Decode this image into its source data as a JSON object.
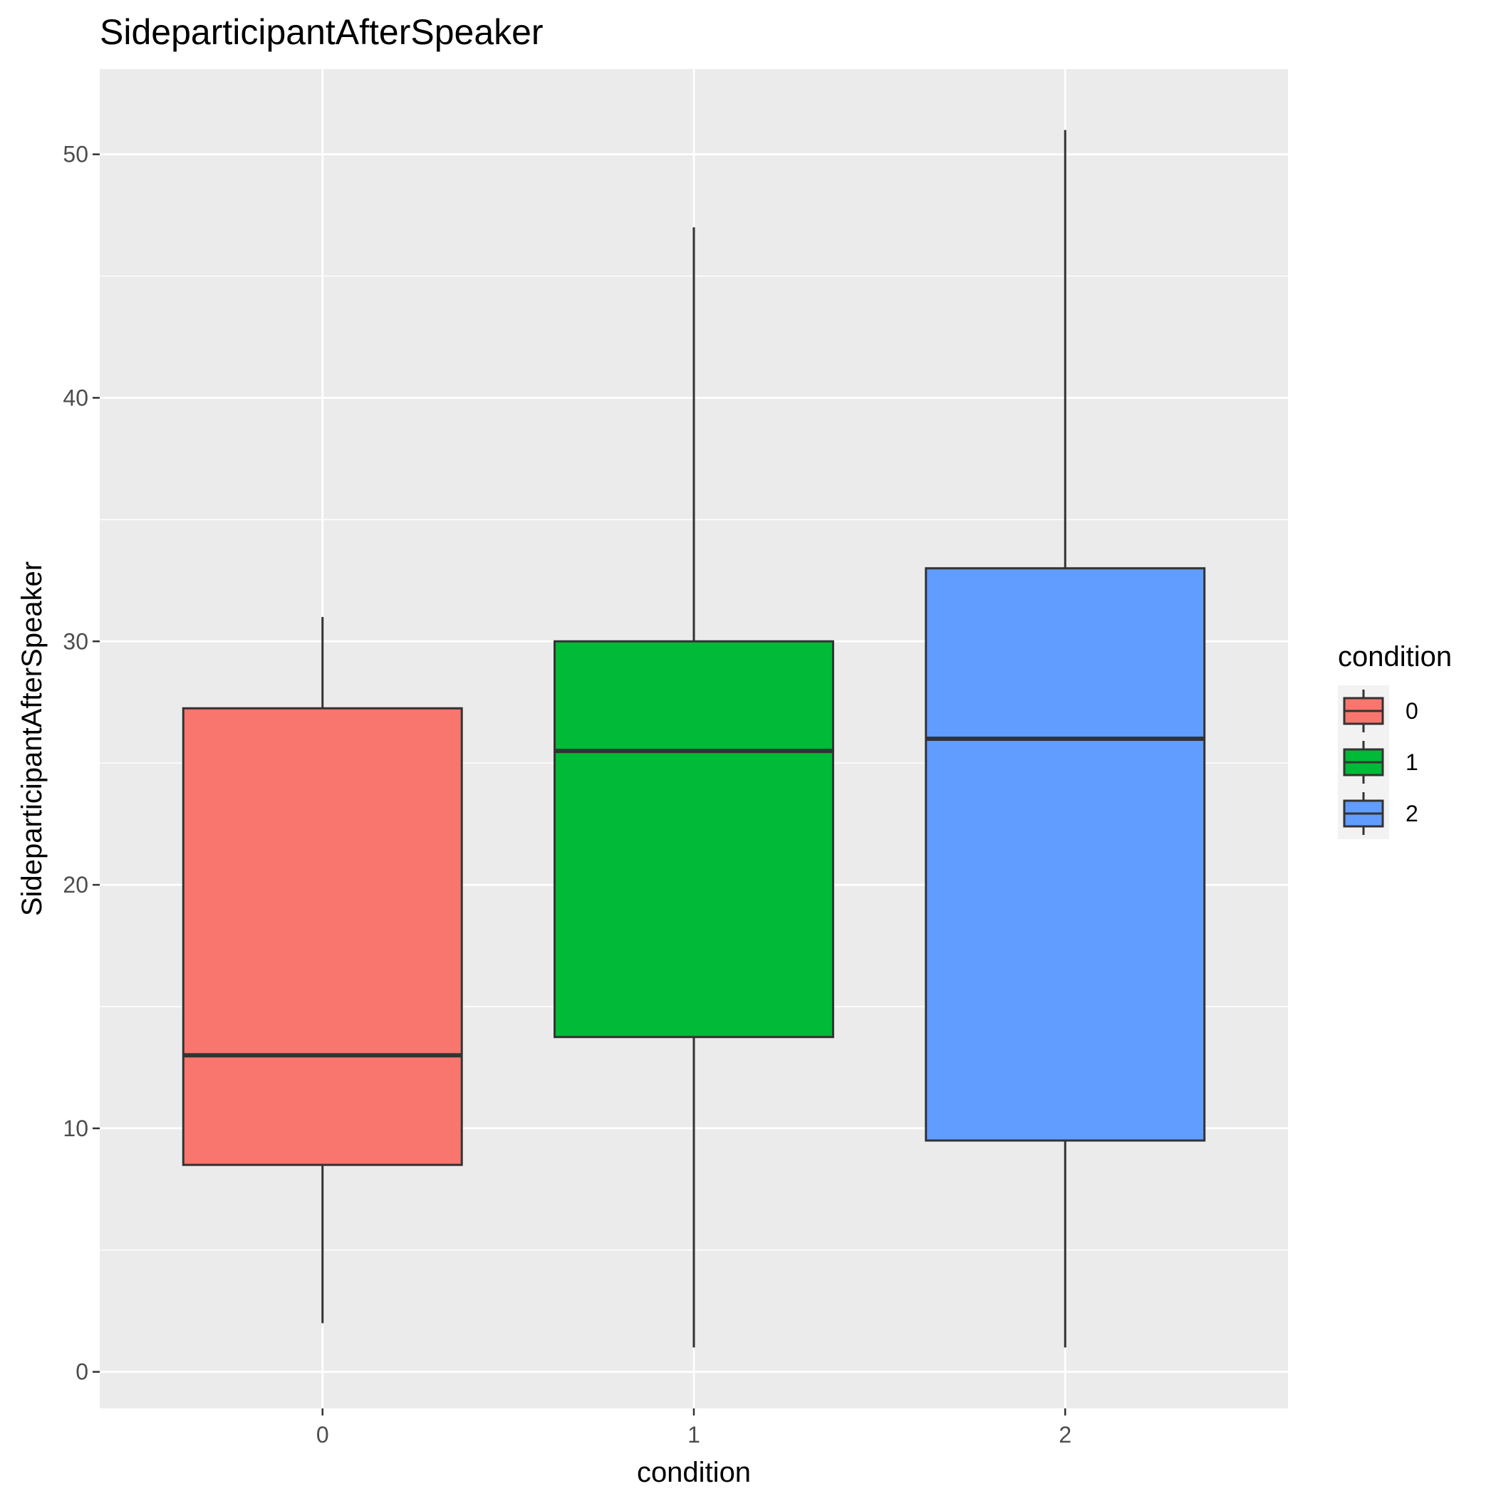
{
  "chart_data": {
    "type": "boxplot",
    "title": "SideparticipantAfterSpeaker",
    "xlabel": "condition",
    "ylabel": "SideparticipantAfterSpeaker",
    "categories": [
      "0",
      "1",
      "2"
    ],
    "y_ticks": [
      0,
      10,
      20,
      30,
      40,
      50
    ],
    "ylim": [
      -1.5,
      53.5
    ],
    "grid": true,
    "legend": {
      "title": "condition",
      "position": "right"
    },
    "series": [
      {
        "name": "0",
        "color": "#F8766D",
        "whisker_low": 2,
        "q1": 8.5,
        "median": 13,
        "q3": 27.25,
        "whisker_high": 31
      },
      {
        "name": "1",
        "color": "#00BA38",
        "whisker_low": 1,
        "q1": 13.75,
        "median": 25.5,
        "q3": 30,
        "whisker_high": 47
      },
      {
        "name": "2",
        "color": "#619CFF",
        "whisker_low": 1,
        "q1": 9.5,
        "median": 26,
        "q3": 33,
        "whisker_high": 51
      }
    ]
  }
}
